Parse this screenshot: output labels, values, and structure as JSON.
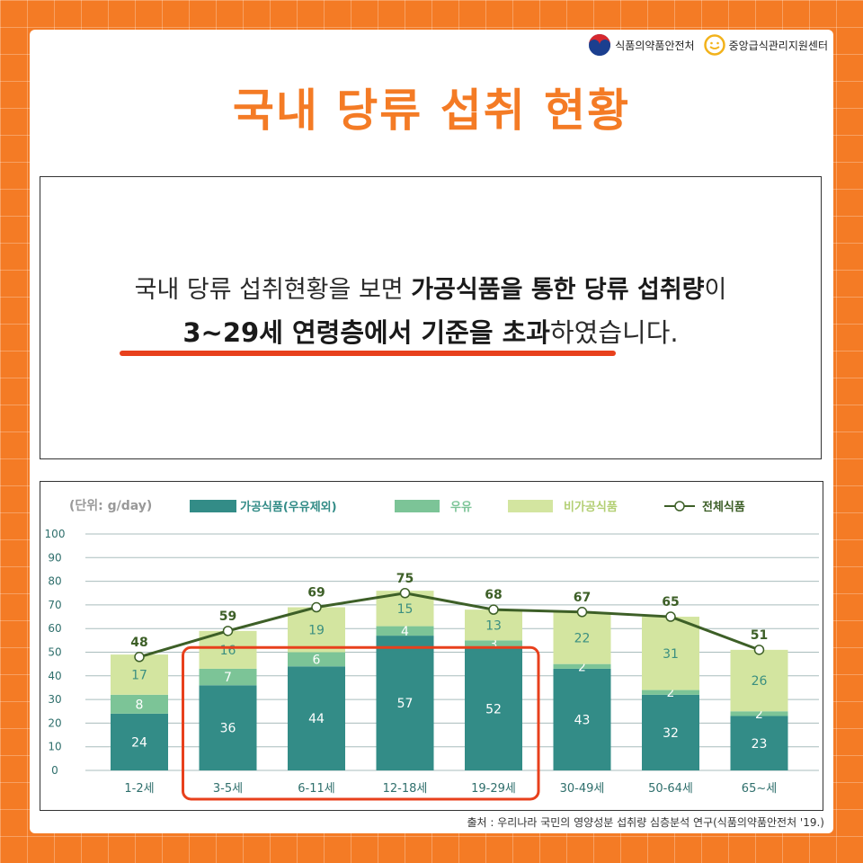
{
  "header": {
    "logo1_text": "식품의약품안전처",
    "logo2_text": "중앙급식관리지원센터",
    "title": "국내 당류 섭취 현황"
  },
  "message": {
    "line1_plain": "국내 당류 섭취현황을 보면 ",
    "line1_bold": "가공식품을 통한 당류 섭취량",
    "line1_end": "이",
    "line2_bold": "3~29세 연령층에서 기준을 초과",
    "line2_end": "하였습니다."
  },
  "colors": {
    "processed": "#338c87",
    "milk": "#7cc497",
    "unprocessed": "#d3e5a0",
    "total_line": "#3d5f27",
    "highlight": "#e8401c"
  },
  "chart_data": {
    "type": "bar",
    "stacked": true,
    "unit_label": "(단위: g/day)",
    "categories": [
      "1-2세",
      "3-5세",
      "6-11세",
      "12-18세",
      "19-29세",
      "30-49세",
      "50-64세",
      "65~세"
    ],
    "series": [
      {
        "name": "가공식품(우유제외)",
        "values": [
          24,
          36,
          44,
          57,
          52,
          43,
          32,
          23
        ]
      },
      {
        "name": "우유",
        "values": [
          8,
          7,
          6,
          4,
          3,
          2,
          2,
          2
        ]
      },
      {
        "name": "비가공식품",
        "values": [
          17,
          16,
          19,
          15,
          13,
          22,
          31,
          26
        ]
      }
    ],
    "line_series": {
      "name": "전체식품",
      "values": [
        48,
        59,
        69,
        75,
        68,
        67,
        65,
        51
      ]
    },
    "yticks": [
      "0",
      "10",
      "20",
      "30",
      "40",
      "50",
      "60",
      "70",
      "80",
      "90",
      "100"
    ],
    "ylim": [
      0,
      100
    ],
    "grid": true,
    "legend_position": "top",
    "highlight_categories": [
      "3-5세",
      "6-11세",
      "12-18세",
      "19-29세"
    ]
  },
  "source": "출처 : 우리나라 국민의 영양성분 섭취량 심층분석 연구(식품의약품안전처 '19.)"
}
